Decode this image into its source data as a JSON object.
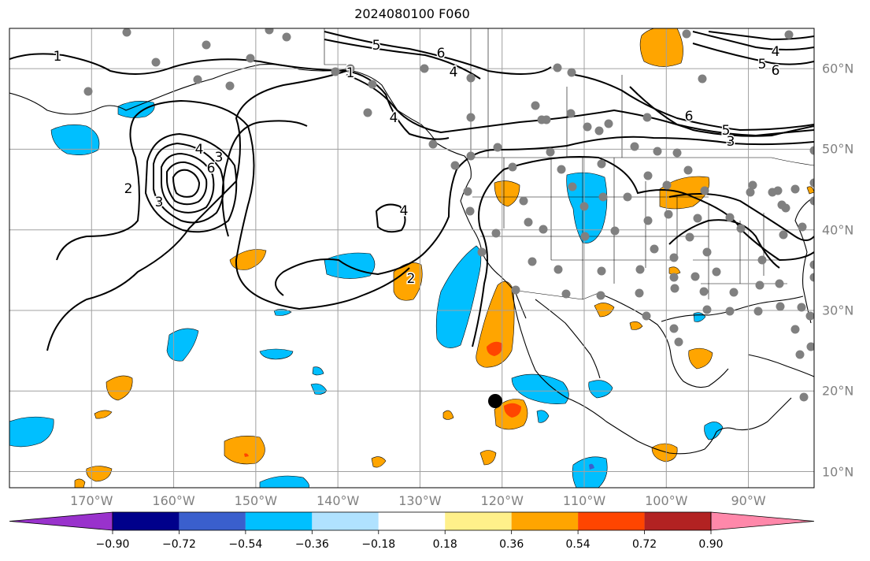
{
  "title": "2024080100 F060",
  "map": {
    "lon_range": [
      -180,
      -82
    ],
    "lat_range": [
      8,
      65
    ],
    "lon_ticks": [
      {
        "v": -170,
        "label": "170°W"
      },
      {
        "v": -160,
        "label": "160°W"
      },
      {
        "v": -150,
        "label": "150°W"
      },
      {
        "v": -140,
        "label": "140°W"
      },
      {
        "v": -130,
        "label": "130°W"
      },
      {
        "v": -120,
        "label": "120°W"
      },
      {
        "v": -110,
        "label": "110°W"
      },
      {
        "v": -100,
        "label": "100°W"
      },
      {
        "v": -90,
        "label": "90°W"
      }
    ],
    "lat_ticks": [
      {
        "v": 60,
        "label": "60°N"
      },
      {
        "v": 50,
        "label": "50°N"
      },
      {
        "v": 40,
        "label": "40°N"
      },
      {
        "v": 30,
        "label": "30°N"
      },
      {
        "v": 20,
        "label": "20°N"
      },
      {
        "v": 10,
        "label": "10°N"
      }
    ],
    "grid": true,
    "contour_labels": [
      "1",
      "2",
      "3",
      "4",
      "5",
      "6"
    ],
    "colors": {
      "stations": "#808080",
      "contours": "#000000",
      "grid": "#a0a0a0",
      "marker": "#000000"
    }
  },
  "colorbar": {
    "colors": [
      "#9932cc",
      "#00008b",
      "#3a5fcd",
      "#00bfff",
      "#b0e2ff",
      "#ffffff",
      "#fff08a",
      "#ffa500",
      "#ff4500",
      "#b22222",
      "#ff88aa"
    ],
    "labels": [
      "−0.90",
      "−0.72",
      "−0.54",
      "−0.36",
      "−0.18",
      "0.18",
      "0.36",
      "0.54",
      "0.72",
      "0.90"
    ]
  }
}
